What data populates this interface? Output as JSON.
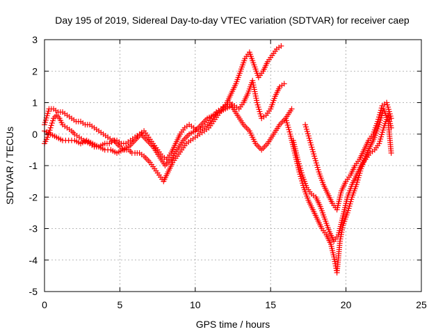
{
  "chart_data": {
    "type": "scatter",
    "title": "Day 195 of 2019, Sidereal Day-to-day VTEC variation (SDTVAR) for receiver caep",
    "xlabel": "GPS time / hours",
    "ylabel": "SDTVAR / TECUs",
    "xlim": [
      0,
      25
    ],
    "ylim": [
      -5,
      3
    ],
    "xticks": [
      0,
      5,
      10,
      15,
      20,
      25
    ],
    "yticks": [
      -5,
      -4,
      -3,
      -2,
      -1,
      0,
      1,
      2,
      3
    ],
    "grid": true,
    "marker": "+",
    "color": "#ff0000",
    "series": [
      {
        "x": [
          0.0,
          0.2,
          0.4,
          0.6,
          0.8,
          1.0,
          1.2,
          1.5,
          1.8,
          2.0,
          2.3,
          2.6,
          3.0,
          3.3,
          3.6,
          4.0,
          4.3,
          4.6,
          5.0,
          5.3,
          5.6,
          5.8,
          6.0,
          6.3,
          6.6,
          7.0,
          7.3,
          7.6,
          7.9,
          8.2,
          8.5,
          8.8,
          9.1,
          9.4,
          9.7,
          10.0,
          10.3,
          10.6,
          10.9,
          11.2,
          11.5,
          11.8,
          12.1,
          12.4,
          12.7,
          13.0,
          13.3,
          13.6,
          13.9,
          14.2,
          14.5,
          14.8,
          15.1,
          15.4,
          15.7
        ],
        "y": [
          -0.3,
          -0.1,
          0.2,
          0.5,
          0.6,
          0.5,
          0.3,
          0.2,
          0.1,
          0.0,
          -0.1,
          -0.2,
          -0.3,
          -0.4,
          -0.4,
          -0.3,
          -0.3,
          -0.2,
          -0.4,
          -0.5,
          -0.5,
          -0.6,
          -0.6,
          -0.6,
          -0.7,
          -0.9,
          -1.1,
          -1.3,
          -1.5,
          -1.2,
          -0.9,
          -0.7,
          -0.5,
          -0.3,
          -0.2,
          -0.1,
          0.0,
          0.1,
          0.2,
          0.4,
          0.6,
          0.8,
          1.0,
          1.3,
          1.6,
          2.0,
          2.4,
          2.6,
          2.2,
          1.8,
          2.0,
          2.3,
          2.5,
          2.7,
          2.8
        ]
      },
      {
        "x": [
          0.0,
          0.3,
          0.6,
          0.9,
          1.2,
          1.5,
          1.8,
          2.1,
          2.4,
          2.7,
          3.0,
          3.3,
          3.6,
          3.9,
          4.2,
          4.5,
          4.8,
          5.1,
          5.4,
          5.7,
          6.0,
          6.3,
          6.6,
          6.9,
          7.2,
          7.5,
          7.8,
          8.1,
          8.4,
          8.7,
          9.0,
          9.3,
          9.6,
          9.9,
          10.2,
          10.5,
          10.8,
          11.1,
          11.4,
          11.7,
          12.0,
          12.3,
          12.6,
          12.9,
          13.2,
          13.5,
          13.8,
          14.1,
          14.4,
          14.7,
          15.0,
          15.3,
          15.6,
          15.9
        ],
        "y": [
          0.3,
          0.8,
          0.8,
          0.7,
          0.7,
          0.6,
          0.5,
          0.4,
          0.4,
          0.3,
          0.3,
          0.2,
          0.1,
          0.0,
          -0.1,
          -0.2,
          -0.2,
          -0.3,
          -0.3,
          -0.2,
          -0.1,
          0.0,
          0.1,
          -0.1,
          -0.3,
          -0.5,
          -0.7,
          -0.8,
          -0.6,
          -0.3,
          0.0,
          0.2,
          0.3,
          0.2,
          0.1,
          0.2,
          0.3,
          0.5,
          0.7,
          0.8,
          0.9,
          1.0,
          0.9,
          0.8,
          1.0,
          1.3,
          1.7,
          1.0,
          0.5,
          0.6,
          0.8,
          1.2,
          1.5,
          1.6
        ]
      },
      {
        "x": [
          0.0,
          0.4,
          0.8,
          1.2,
          1.6,
          2.0,
          2.4,
          2.8,
          3.2,
          3.6,
          4.0,
          4.4,
          4.8,
          5.2,
          5.6,
          6.0,
          6.4,
          6.8,
          7.2,
          7.6,
          8.0,
          8.4,
          8.8,
          9.2,
          9.6,
          10.0,
          10.4,
          10.8,
          11.2,
          11.6,
          12.0,
          12.4,
          12.8,
          13.2,
          13.6,
          14.0,
          14.4,
          14.8,
          15.2,
          15.6,
          16.0,
          16.4
        ],
        "y": [
          0.1,
          0.0,
          -0.1,
          -0.2,
          -0.2,
          -0.2,
          -0.3,
          -0.2,
          -0.3,
          -0.4,
          -0.5,
          -0.5,
          -0.6,
          -0.5,
          -0.4,
          -0.2,
          0.0,
          -0.2,
          -0.4,
          -0.7,
          -1.0,
          -0.8,
          -0.5,
          -0.2,
          0.0,
          0.1,
          0.3,
          0.5,
          0.6,
          0.7,
          0.8,
          0.9,
          0.6,
          0.3,
          0.1,
          -0.3,
          -0.5,
          -0.3,
          0.0,
          0.3,
          0.5,
          0.8
        ]
      },
      {
        "x": [
          16.0,
          16.3,
          16.6,
          16.9,
          17.2,
          17.5,
          17.8,
          18.1,
          18.4,
          18.7,
          19.0,
          19.2,
          19.4,
          19.6,
          19.8,
          20.1,
          20.4,
          20.7,
          21.0,
          21.3,
          21.6,
          21.9,
          22.2,
          22.5,
          22.8,
          23.0
        ],
        "y": [
          0.5,
          0.0,
          -0.6,
          -1.2,
          -1.7,
          -2.1,
          -2.4,
          -2.7,
          -3.0,
          -3.2,
          -3.5,
          -3.9,
          -4.4,
          -3.4,
          -2.9,
          -2.5,
          -2.0,
          -1.6,
          -1.1,
          -0.7,
          -0.4,
          -0.1,
          0.3,
          0.8,
          0.4,
          -0.6
        ]
      },
      {
        "x": [
          16.5,
          16.8,
          17.1,
          17.4,
          17.7,
          18.0,
          18.3,
          18.6,
          18.9,
          19.2,
          19.5,
          19.8,
          20.1,
          20.4,
          20.7,
          21.0,
          21.3,
          21.6,
          21.9,
          22.2,
          22.5,
          22.8,
          23.0
        ],
        "y": [
          -0.2,
          -0.8,
          -1.3,
          -1.7,
          -1.9,
          -2.0,
          -2.3,
          -2.7,
          -3.1,
          -3.4,
          -3.2,
          -2.6,
          -2.0,
          -1.6,
          -1.3,
          -1.0,
          -0.8,
          -0.6,
          -0.5,
          -0.3,
          0.2,
          0.6,
          0.2
        ]
      },
      {
        "x": [
          17.3,
          17.6,
          17.9,
          18.2,
          18.5,
          18.8,
          19.1,
          19.4,
          19.7,
          20.0,
          20.3,
          20.6,
          20.9,
          21.2,
          21.5,
          21.8,
          22.1,
          22.4,
          22.7,
          23.0
        ],
        "y": [
          0.3,
          -0.2,
          -0.7,
          -1.2,
          -1.6,
          -1.9,
          -2.2,
          -2.4,
          -1.8,
          -1.5,
          -1.3,
          -1.0,
          -0.8,
          -0.5,
          -0.2,
          0.0,
          0.4,
          0.9,
          1.0,
          0.5
        ]
      }
    ]
  }
}
